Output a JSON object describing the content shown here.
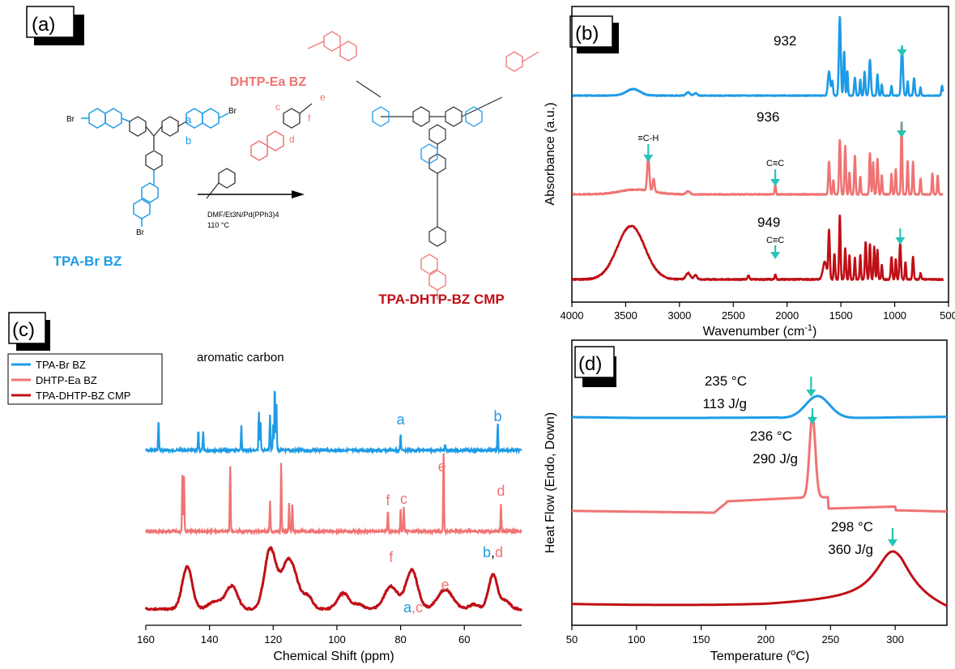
{
  "colors": {
    "blue": "#1E9BE6",
    "pink": "#F07373",
    "dark": "#C00F16",
    "teal": "#27C3B6",
    "black": "#000000"
  },
  "panel_a": {
    "label": "(a)",
    "title": "DHTP-Ea BZ",
    "reactant_left": "TPA-Br BZ",
    "product": "TPA-DHTP-BZ CMP",
    "condition1": "DMF/Et3N/Pd(PPh3)4",
    "condition2": "110 °C",
    "atom_labels_blue": [
      "a",
      "b"
    ],
    "atom_labels_pink": [
      "c",
      "d",
      "e",
      "f"
    ],
    "br_labels": [
      "Br",
      "Br",
      "Br"
    ]
  },
  "chart_data": [
    {
      "panel": "(b)",
      "type": "line",
      "xlabel": "Wavenumber (cm",
      "xlabel_sup": "-1",
      "xlabel_end": ")",
      "ylabel": "Absorbance (a.u.)",
      "xlim": [
        4000,
        500
      ],
      "x_ticks": [
        4000,
        3500,
        3000,
        2500,
        2000,
        1500,
        1000,
        500
      ],
      "annotations": [
        "932",
        "936",
        "949",
        "≡C-H",
        "C≡C",
        "C≡C"
      ],
      "series": [
        {
          "color": "blue",
          "marker_wavenumber": 932,
          "peaks_x": [
            3430,
            2920,
            2850,
            1610,
            1510,
            1470,
            1370,
            1230,
            1160,
            932,
            820,
            560
          ]
        },
        {
          "color": "pink",
          "marker_wavenumber": 936,
          "peaks_x": [
            3290,
            3240,
            2110,
            1610,
            1510,
            1460,
            1370,
            1230,
            1160,
            936,
            830
          ]
        },
        {
          "color": "dark",
          "marker_wavenumber": 949,
          "peaks_x": [
            3450,
            2920,
            2110,
            1610,
            1510,
            1460,
            1370,
            1230,
            1160,
            949,
            830
          ]
        }
      ]
    },
    {
      "panel": "(c)",
      "type": "line",
      "xlabel": "Chemical Shift (ppm)",
      "xlim": [
        160,
        42
      ],
      "x_ticks": [
        160,
        140,
        120,
        100,
        80,
        60
      ],
      "legend": [
        "TPA-Br BZ",
        "DHTP-Ea BZ",
        "TPA-DHTP-BZ CMP"
      ],
      "legend_position": "top-left",
      "annotation_top": "aromatic carbon",
      "series": [
        {
          "name": "TPA-Br BZ",
          "color": "blue",
          "peaks_ppm": [
            156,
            143.5,
            142,
            130,
            124.5,
            124,
            121,
            120,
            119.5,
            80,
            66,
            49.5
          ]
        },
        {
          "name": "DHTP-Ea BZ",
          "color": "pink",
          "peaks_ppm": [
            148.5,
            148,
            133.5,
            121,
            117.5,
            115,
            114,
            84,
            80,
            79,
            66.5,
            48.5
          ]
        },
        {
          "name": "TPA-DHTP-BZ CMP",
          "color": "dark",
          "peaks_ppm": [
            147,
            133,
            121,
            115,
            98,
            83,
            76.5,
            66,
            51
          ]
        }
      ],
      "peak_labels": [
        {
          "text": "a",
          "ppm": 80,
          "color": "blue",
          "row": 0
        },
        {
          "text": "b",
          "ppm": 49.5,
          "color": "blue",
          "row": 0
        },
        {
          "text": "e",
          "ppm": 67,
          "color": "pink",
          "row": 1
        },
        {
          "text": "f",
          "ppm": 84,
          "color": "pink",
          "row": 1
        },
        {
          "text": "c",
          "ppm": 79,
          "color": "pink",
          "row": 1
        },
        {
          "text": "d",
          "ppm": 48.5,
          "color": "pink",
          "row": 1
        },
        {
          "text": "*",
          "ppm": 98.5,
          "color": "dark",
          "row": 2
        },
        {
          "text": "f",
          "ppm": 83,
          "color": "pink",
          "row": 2
        },
        {
          "text": "e",
          "ppm": 66,
          "color": "pink",
          "row": 2
        }
      ]
    },
    {
      "panel": "(d)",
      "type": "line",
      "xlabel": "Temperature (",
      "xlabel_sup": "o",
      "xlabel_end": "C)",
      "ylabel": "Heat Flow (Endo, Down)",
      "xlim": [
        50,
        340
      ],
      "x_ticks": [
        50,
        100,
        150,
        200,
        250,
        300
      ],
      "series": [
        {
          "color": "blue",
          "peak_temp_C": 235,
          "enthalpy_J_per_g": 113
        },
        {
          "color": "pink",
          "peak_temp_C": 236,
          "enthalpy_J_per_g": 290
        },
        {
          "color": "dark",
          "peak_temp_C": 298,
          "enthalpy_J_per_g": 360
        }
      ],
      "annotations": [
        {
          "temp": "235 °C",
          "enthalpy": "113 J/g"
        },
        {
          "temp": "236 °C",
          "enthalpy": "290 J/g"
        },
        {
          "temp": "298 °C",
          "enthalpy": "360 J/g"
        }
      ]
    }
  ]
}
